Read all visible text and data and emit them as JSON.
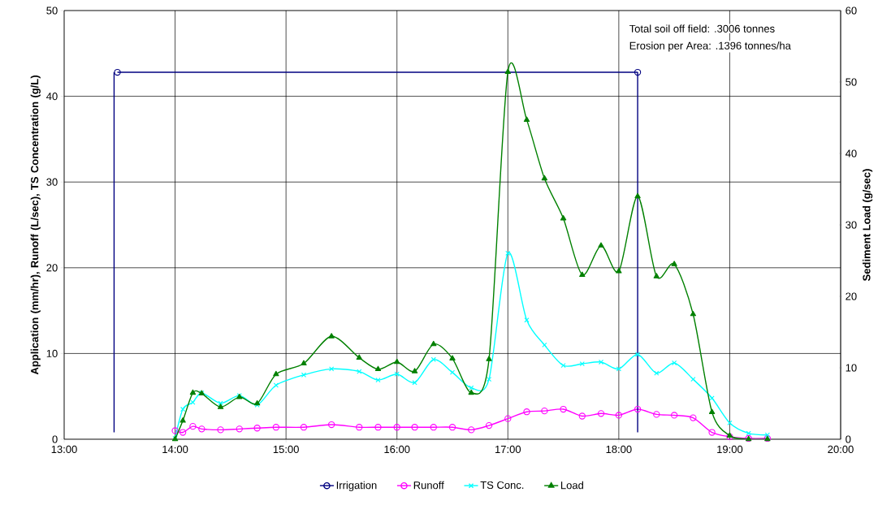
{
  "chart_data": {
    "type": "line",
    "ylabel": "Application (mm/hr),   Runoff (L/sec), TS Concentration (g/L)",
    "y2label": "Sediment Load (g/sec)",
    "annotations": [
      "Total soil off field: .3006 tonnes",
      "Erosion per Area: .1396 tonnes/ha"
    ],
    "x": [
      14.0,
      14.07,
      14.16,
      14.24,
      14.41,
      14.58,
      14.74,
      14.91,
      15.16,
      15.41,
      15.66,
      15.83,
      16.0,
      16.16,
      16.33,
      16.5,
      16.67,
      16.83,
      17.0,
      17.17,
      17.33,
      17.5,
      17.67,
      17.84,
      18.0,
      18.17,
      18.34,
      18.5,
      18.67,
      18.84,
      19.0,
      19.17,
      19.34
    ],
    "series": [
      {
        "name": "Irrigation",
        "color": "#000080",
        "marker": "circle",
        "x": [
          13.48,
          18.17
        ],
        "values": [
          42.8,
          42.8
        ]
      },
      {
        "name": "Runoff",
        "color": "#ff00ff",
        "marker": "circle",
        "values": [
          1.0,
          0.8,
          1.5,
          1.2,
          1.1,
          1.2,
          1.3,
          1.4,
          1.4,
          1.7,
          1.4,
          1.4,
          1.4,
          1.4,
          1.4,
          1.4,
          1.1,
          1.6,
          2.4,
          3.2,
          3.3,
          3.5,
          2.7,
          3.0,
          2.8,
          3.5,
          2.9,
          2.8,
          2.5,
          0.8,
          0.3,
          0.1,
          0.1
        ]
      },
      {
        "name": "TS Conc.",
        "color": "#00ffff",
        "marker": "cross",
        "values": [
          0.1,
          3.5,
          4.3,
          5.4,
          4.2,
          5.1,
          4.0,
          6.3,
          7.5,
          8.2,
          7.9,
          6.9,
          7.6,
          6.6,
          9.3,
          7.8,
          6.0,
          7.0,
          21.7,
          13.9,
          11.0,
          8.6,
          8.8,
          9.0,
          8.2,
          9.9,
          7.7,
          8.9,
          7.0,
          4.8,
          1.9,
          0.7,
          0.5
        ]
      },
      {
        "name": "Load",
        "color": "#008000",
        "marker": "triangle",
        "axis": "y2",
        "values": [
          0.0,
          2.6,
          6.5,
          6.4,
          4.5,
          5.9,
          5.0,
          9.1,
          10.6,
          14.4,
          11.4,
          9.8,
          10.8,
          9.5,
          13.3,
          11.3,
          6.5,
          11.2,
          51.4,
          44.7,
          36.5,
          30.9,
          23.0,
          27.1,
          23.5,
          34.0,
          22.8,
          24.5,
          17.5,
          3.8,
          0.5,
          0.0,
          0.0
        ]
      },
      {
        "color": "#000080",
        "marker": "none",
        "x": [
          13.45,
          13.45
        ],
        "values": [
          0.8,
          42.8
        ]
      },
      {
        "color": "#000080",
        "marker": "none",
        "x": [
          18.17,
          18.17
        ],
        "values": [
          42.8,
          0.8
        ]
      }
    ],
    "xlim": [
      13,
      20
    ],
    "xticks": [
      {
        "value": 13,
        "label": "13:00"
      },
      {
        "value": 14,
        "label": "14:00"
      },
      {
        "value": 15,
        "label": "15:00"
      },
      {
        "value": 16,
        "label": "16:00"
      },
      {
        "value": 17,
        "label": "17:00"
      },
      {
        "value": 18,
        "label": "18:00"
      },
      {
        "value": 19,
        "label": "19:00"
      },
      {
        "value": 20,
        "label": "20:00"
      }
    ],
    "ylim": [
      0,
      50
    ],
    "yticks": [
      0,
      10,
      20,
      30,
      40,
      50
    ],
    "y2lim": [
      0,
      60
    ],
    "y2ticks": [
      0,
      10,
      20,
      30,
      40,
      50,
      60
    ],
    "grid": true,
    "legend": "bottom"
  }
}
